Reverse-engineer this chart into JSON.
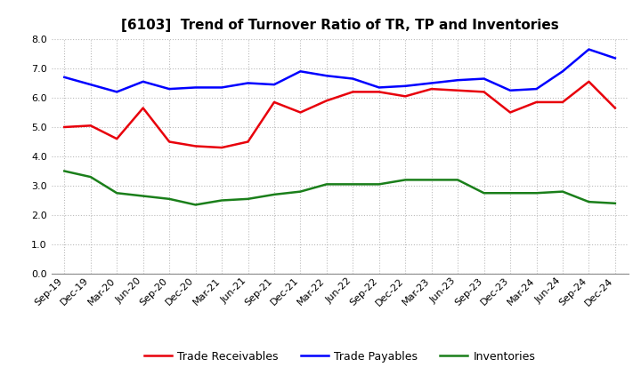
{
  "title": "[6103]  Trend of Turnover Ratio of TR, TP and Inventories",
  "x_labels": [
    "Sep-19",
    "Dec-19",
    "Mar-20",
    "Jun-20",
    "Sep-20",
    "Dec-20",
    "Mar-21",
    "Jun-21",
    "Sep-21",
    "Dec-21",
    "Mar-22",
    "Jun-22",
    "Sep-22",
    "Dec-22",
    "Mar-23",
    "Jun-23",
    "Sep-23",
    "Dec-23",
    "Mar-24",
    "Jun-24",
    "Sep-24",
    "Dec-24"
  ],
  "trade_receivables": [
    5.0,
    5.05,
    4.6,
    5.65,
    4.5,
    4.35,
    4.3,
    4.5,
    5.85,
    5.5,
    5.9,
    6.2,
    6.2,
    6.05,
    6.3,
    6.25,
    6.2,
    5.5,
    5.85,
    5.85,
    6.55,
    5.65
  ],
  "trade_payables": [
    6.7,
    6.45,
    6.2,
    6.55,
    6.3,
    6.35,
    6.35,
    6.5,
    6.45,
    6.9,
    6.75,
    6.65,
    6.35,
    6.4,
    6.5,
    6.6,
    6.65,
    6.25,
    6.3,
    6.9,
    7.65,
    7.35
  ],
  "inventories": [
    3.5,
    3.3,
    2.75,
    2.65,
    2.55,
    2.35,
    2.5,
    2.55,
    2.7,
    2.8,
    3.05,
    3.05,
    3.05,
    3.2,
    3.2,
    3.2,
    2.75,
    2.75,
    2.75,
    2.8,
    2.45,
    2.4
  ],
  "ylim": [
    0.0,
    8.0
  ],
  "yticks": [
    0.0,
    1.0,
    2.0,
    3.0,
    4.0,
    5.0,
    6.0,
    7.0,
    8.0
  ],
  "color_tr": "#e8000b",
  "color_tp": "#0000ff",
  "color_inv": "#1a7f1a",
  "background_color": "#ffffff",
  "grid_color": "#bbbbbb",
  "legend_labels": [
    "Trade Receivables",
    "Trade Payables",
    "Inventories"
  ],
  "title_fontsize": 11,
  "tick_fontsize": 8,
  "legend_fontsize": 9,
  "linewidth": 1.8
}
